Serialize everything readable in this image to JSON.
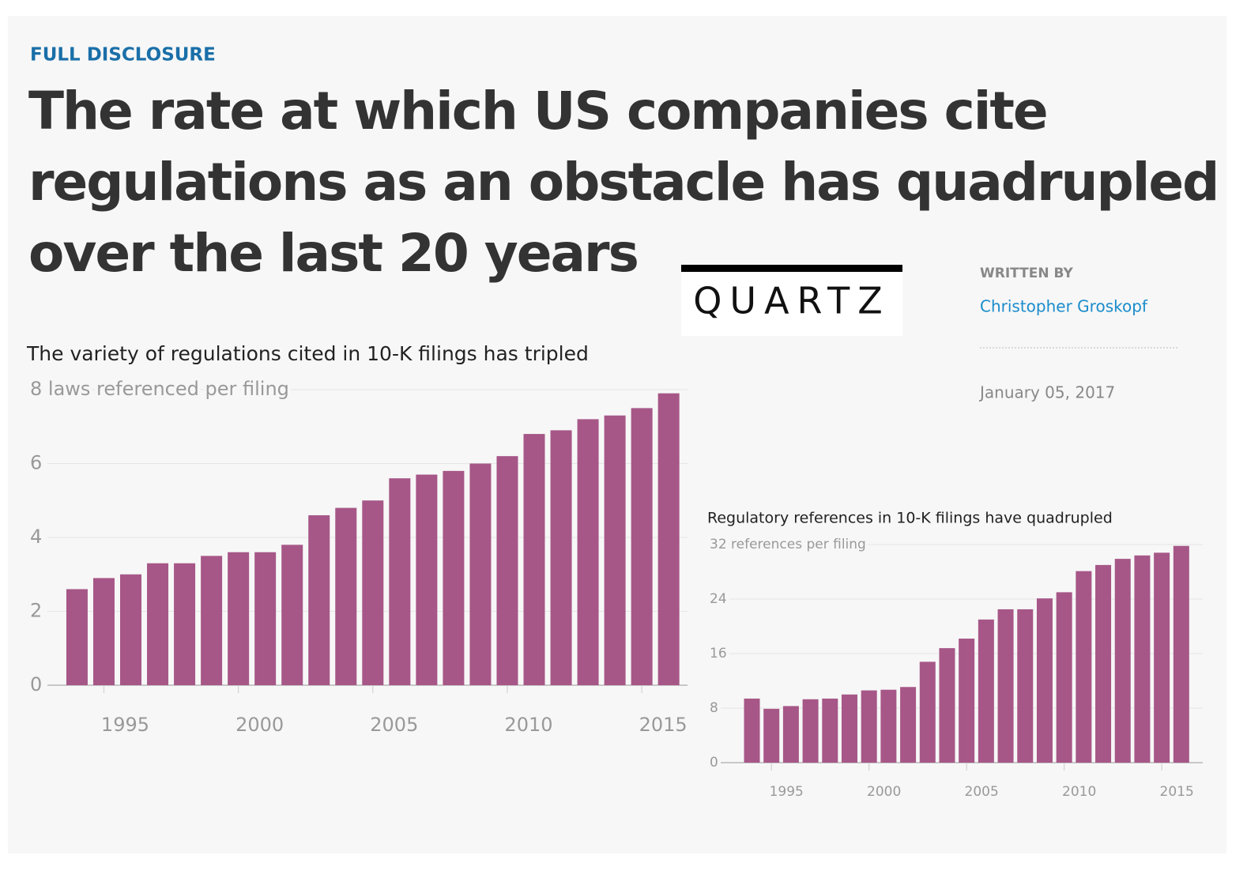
{
  "kicker": "FULL DISCLOSURE",
  "headline": "The rate at which US companies cite regulations as an obstacle has quadrupled over the last 20 years",
  "logo": "QUARTZ",
  "byline_label": "WRITTEN BY",
  "author": "Christopher Groskopf",
  "date": "January 05, 2017",
  "chart_data": [
    {
      "type": "bar",
      "title": "The variety of regulations cited in 10-K filings has tripled",
      "x": [
        1994,
        1995,
        1996,
        1997,
        1998,
        1999,
        2000,
        2001,
        2002,
        2003,
        2004,
        2005,
        2006,
        2007,
        2008,
        2009,
        2010,
        2011,
        2012,
        2013,
        2014,
        2015,
        2016
      ],
      "values": [
        2.6,
        2.9,
        3.0,
        3.3,
        3.3,
        3.5,
        3.6,
        3.6,
        3.8,
        4.6,
        4.8,
        5.0,
        5.6,
        5.7,
        5.8,
        6.0,
        6.2,
        6.8,
        6.9,
        7.2,
        7.3,
        7.5,
        7.9
      ],
      "color": "#a65787",
      "xlim": [
        1992.9,
        2016.7
      ],
      "xticks": [
        1995,
        2000,
        2005,
        2010,
        2015
      ],
      "ylim": [
        0,
        8
      ],
      "yticks": [
        0,
        2,
        4,
        6,
        {
          "value": 8,
          "label": "8 laws referenced per filing"
        }
      ],
      "grid": true
    },
    {
      "type": "bar",
      "title": "Regulatory references in 10-K filings have quadrupled",
      "x": [
        1994,
        1995,
        1996,
        1997,
        1998,
        1999,
        2000,
        2001,
        2002,
        2003,
        2004,
        2005,
        2006,
        2007,
        2008,
        2009,
        2010,
        2011,
        2012,
        2013,
        2014,
        2015,
        2016
      ],
      "values": [
        9.4,
        7.9,
        8.3,
        9.3,
        9.4,
        10.0,
        10.6,
        10.7,
        11.1,
        14.8,
        16.8,
        18.2,
        21.0,
        22.5,
        22.5,
        24.1,
        25.0,
        28.1,
        29.0,
        29.9,
        30.4,
        30.8,
        31.8
      ],
      "color": "#a65787",
      "xlim": [
        1992.4,
        2017.1
      ],
      "xticks": [
        1995,
        2000,
        2005,
        2010,
        2015
      ],
      "ylim": [
        0,
        32
      ],
      "yticks": [
        0,
        8,
        16,
        24,
        {
          "value": 32,
          "label": "32 references per filing"
        }
      ],
      "grid": true
    }
  ]
}
